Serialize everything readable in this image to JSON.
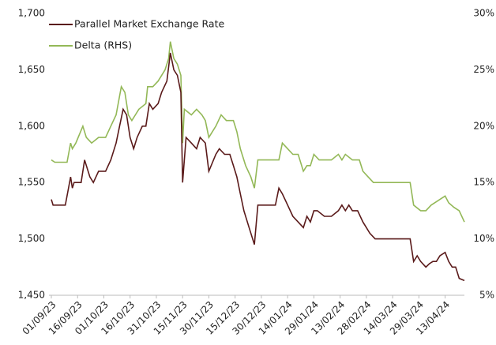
{
  "chart_data": {
    "type": "line",
    "legend": "upper left",
    "grid": false,
    "xlim": [
      "01/09/23",
      "24/04/24"
    ],
    "xticks": [
      "01/09/23",
      "16/09/23",
      "01/10/23",
      "16/10/23",
      "31/10/23",
      "15/11/23",
      "30/11/23",
      "15/12/23",
      "30/12/23",
      "14/01/24",
      "29/01/24",
      "13/02/24",
      "28/02/24",
      "14/03/24",
      "29/03/24",
      "13/04/24"
    ],
    "ylim": [
      1450,
      1700
    ],
    "yticks": [
      {
        "value": 1450,
        "label": "1,450"
      },
      {
        "value": 1500,
        "label": "1,500"
      },
      {
        "value": 1550,
        "label": "1,550"
      },
      {
        "value": 1600,
        "label": "1,600"
      },
      {
        "value": 1650,
        "label": "1,650"
      },
      {
        "value": 1700,
        "label": "1,700"
      }
    ],
    "y2lim": [
      5,
      30
    ],
    "y2ticks": [
      {
        "value": 5,
        "label": "5%"
      },
      {
        "value": 10,
        "label": "10%"
      },
      {
        "value": 15,
        "label": "15%"
      },
      {
        "value": 20,
        "label": "20%"
      },
      {
        "value": 25,
        "label": "25%"
      },
      {
        "value": 30,
        "label": "30%"
      }
    ],
    "series": [
      {
        "name": "Parallel Market Exchange Rate",
        "color": "#5a1a1a",
        "axis": "y",
        "x": [
          "01/09/23",
          "02/09/23",
          "09/09/23",
          "12/09/23",
          "13/09/23",
          "14/09/23",
          "18/09/23",
          "20/09/23",
          "23/09/23",
          "25/09/23",
          "28/09/23",
          "02/10/23",
          "05/10/23",
          "08/10/23",
          "10/10/23",
          "12/10/23",
          "14/10/23",
          "16/10/23",
          "18/10/23",
          "20/10/23",
          "23/10/23",
          "25/10/23",
          "27/10/23",
          "29/10/23",
          "01/11/23",
          "03/11/23",
          "06/11/23",
          "08/11/23",
          "10/11/23",
          "12/11/23",
          "14/11/23",
          "15/11/23",
          "17/11/23",
          "20/11/23",
          "23/11/23",
          "25/11/23",
          "28/11/23",
          "30/11/23",
          "04/12/23",
          "06/12/23",
          "09/12/23",
          "12/12/23",
          "14/12/23",
          "16/12/23",
          "18/12/23",
          "20/12/23",
          "23/12/23",
          "26/12/23",
          "28/12/23",
          "31/12/23",
          "05/01/24",
          "07/01/24",
          "09/01/24",
          "11/01/24",
          "14/01/24",
          "17/01/24",
          "20/01/24",
          "23/01/24",
          "25/01/24",
          "27/01/24",
          "29/01/24",
          "31/01/24",
          "04/02/24",
          "08/02/24",
          "12/02/24",
          "14/02/24",
          "16/02/24",
          "18/02/24",
          "20/02/24",
          "23/02/24",
          "26/02/24",
          "28/02/24",
          "01/03/24",
          "04/03/24",
          "10/03/24",
          "20/03/24",
          "24/03/24",
          "26/03/24",
          "28/03/24",
          "30/03/24",
          "02/04/24",
          "04/04/24",
          "06/04/24",
          "08/04/24",
          "10/04/24",
          "13/04/24",
          "15/04/24",
          "17/04/24",
          "19/04/24",
          "21/04/24",
          "24/04/24"
        ],
        "values": [
          1535,
          1530,
          1530,
          1555,
          1545,
          1550,
          1550,
          1570,
          1555,
          1550,
          1560,
          1560,
          1570,
          1585,
          1600,
          1615,
          1610,
          1590,
          1580,
          1590,
          1600,
          1600,
          1620,
          1615,
          1620,
          1630,
          1640,
          1665,
          1650,
          1645,
          1630,
          1550,
          1590,
          1585,
          1580,
          1590,
          1585,
          1560,
          1575,
          1580,
          1575,
          1575,
          1565,
          1555,
          1540,
          1525,
          1510,
          1495,
          1530,
          1530,
          1530,
          1530,
          1545,
          1540,
          1530,
          1520,
          1515,
          1510,
          1520,
          1515,
          1525,
          1525,
          1520,
          1520,
          1525,
          1530,
          1525,
          1530,
          1525,
          1525,
          1515,
          1510,
          1505,
          1500,
          1500,
          1500,
          1500,
          1480,
          1485,
          1480,
          1475,
          1478,
          1480,
          1480,
          1485,
          1488,
          1480,
          1475,
          1475,
          1465,
          1463
        ]
      },
      {
        "name": "Delta (RHS)",
        "color": "#93b857",
        "axis": "y2",
        "x": [
          "01/09/23",
          "03/09/23",
          "10/09/23",
          "12/09/23",
          "13/09/23",
          "15/09/23",
          "19/09/23",
          "21/09/23",
          "24/09/23",
          "28/09/23",
          "02/10/23",
          "05/10/23",
          "08/10/23",
          "11/10/23",
          "13/10/23",
          "15/10/23",
          "17/10/23",
          "19/10/23",
          "21/10/23",
          "25/10/23",
          "26/10/23",
          "29/10/23",
          "01/11/23",
          "05/11/23",
          "07/11/23",
          "08/11/23",
          "10/11/23",
          "12/11/23",
          "14/11/23",
          "15/11/23",
          "16/11/23",
          "20/11/23",
          "23/11/23",
          "26/11/23",
          "28/11/23",
          "30/11/23",
          "04/12/23",
          "07/12/23",
          "10/12/23",
          "14/12/23",
          "16/12/23",
          "18/12/23",
          "21/12/23",
          "24/12/23",
          "26/12/23",
          "28/12/23",
          "05/01/24",
          "09/01/24",
          "11/01/24",
          "14/01/24",
          "17/01/24",
          "20/01/24",
          "23/01/24",
          "25/01/24",
          "27/01/24",
          "29/01/24",
          "01/02/24",
          "08/02/24",
          "12/02/24",
          "14/02/24",
          "16/02/24",
          "20/02/24",
          "24/02/24",
          "26/02/24",
          "29/02/24",
          "03/03/24",
          "10/03/24",
          "20/03/24",
          "24/03/24",
          "26/03/24",
          "30/03/24",
          "02/04/24",
          "05/04/24",
          "10/04/24",
          "13/04/24",
          "15/04/24",
          "18/04/24",
          "21/04/24",
          "24/04/24"
        ],
        "values": [
          17,
          16.8,
          16.8,
          18.5,
          18,
          18.5,
          20,
          19,
          18.5,
          19,
          19,
          20,
          21,
          23.5,
          23,
          21,
          20.5,
          21,
          21.5,
          22,
          23.5,
          23.5,
          24,
          25,
          26,
          27.5,
          26,
          25.5,
          24.5,
          18.5,
          21.5,
          21,
          21.5,
          21,
          20.5,
          19,
          20,
          21,
          20.5,
          20.5,
          19.5,
          18,
          16.5,
          15.5,
          14.5,
          17,
          17,
          17,
          18.5,
          18,
          17.5,
          17.5,
          16,
          16.5,
          16.5,
          17.5,
          17,
          17,
          17.5,
          17,
          17.5,
          17,
          17,
          16,
          15.5,
          15,
          15,
          15,
          15,
          13,
          12.5,
          12.5,
          13,
          13.5,
          13.8,
          13.2,
          12.8,
          12.5,
          11.5
        ]
      }
    ]
  }
}
